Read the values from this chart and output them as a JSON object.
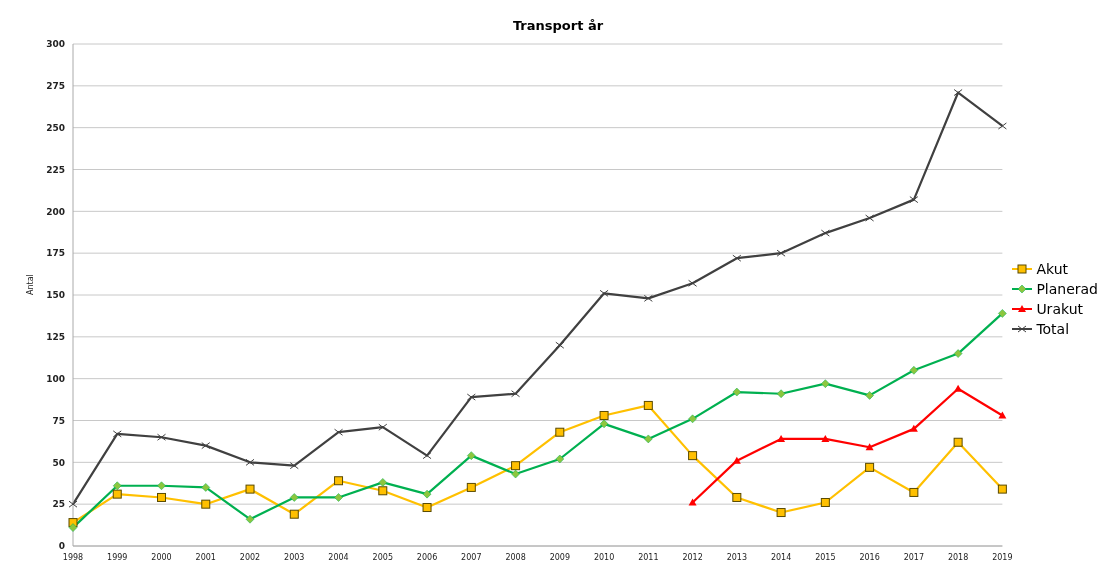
{
  "chart_data": {
    "type": "line",
    "title": "Transport år",
    "ylabel": "Antal",
    "categories": [
      "1998",
      "1999",
      "2000",
      "2001",
      "2002",
      "2003",
      "2004",
      "2005",
      "2006",
      "2007",
      "2008",
      "2009",
      "2010",
      "2011",
      "2012",
      "2013",
      "2014",
      "2015",
      "2016",
      "2017",
      "2018",
      "2019"
    ],
    "series": [
      {
        "name": "Akut",
        "color": "#ffc000",
        "marker": "square",
        "values": [
          14,
          31,
          29,
          25,
          34,
          19,
          39,
          33,
          23,
          35,
          48,
          68,
          78,
          84,
          54,
          29,
          20,
          26,
          47,
          32,
          62,
          34
        ]
      },
      {
        "name": "Planerad",
        "color": "#00b050",
        "marker": "diamond",
        "values": [
          11,
          36,
          36,
          35,
          16,
          29,
          29,
          38,
          31,
          54,
          43,
          52,
          73,
          64,
          76,
          92,
          91,
          97,
          90,
          105,
          115,
          139
        ]
      },
      {
        "name": "Urakut",
        "color": "#ff0000",
        "marker": "triangle",
        "values": [
          null,
          null,
          null,
          null,
          null,
          null,
          null,
          null,
          null,
          null,
          null,
          null,
          null,
          null,
          26,
          51,
          64,
          64,
          59,
          70,
          94,
          78
        ]
      },
      {
        "name": "Total",
        "color": "#404040",
        "marker": "cross",
        "values": [
          25,
          67,
          65,
          60,
          50,
          48,
          68,
          71,
          54,
          89,
          91,
          120,
          151,
          148,
          157,
          172,
          175,
          187,
          196,
          207,
          271,
          251
        ]
      }
    ],
    "ylim": [
      0,
      300
    ],
    "yticks": [
      0,
      25,
      50,
      75,
      100,
      125,
      150,
      175,
      200,
      225,
      250,
      275,
      300
    ],
    "grid": "y",
    "legend": "right",
    "line_style": "solid"
  }
}
